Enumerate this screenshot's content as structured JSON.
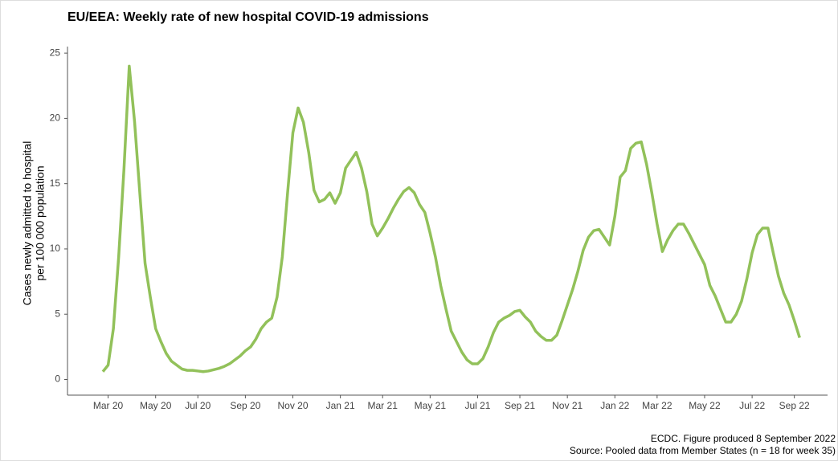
{
  "chart_data": {
    "type": "line",
    "title": "EU/EEA: Weekly rate of new hospital COVID-19 admissions",
    "ylabel": [
      "Cases newly admitted to hospital",
      "per 100 000 population"
    ],
    "notes": [
      "ECDC. Figure produced 8 September 2022",
      "Source: Pooled data from Member States (n = 18 for week 35)"
    ],
    "color": "#92c15a",
    "ylim": [
      -1.2,
      25.5
    ],
    "yticks": [
      0,
      5,
      10,
      15,
      20,
      25
    ],
    "grid": false,
    "categories": [
      null,
      "Mar 20",
      null,
      null,
      null,
      null,
      null,
      null,
      null,
      null,
      "May 20",
      null,
      null,
      null,
      null,
      null,
      null,
      null,
      "Jul 20",
      null,
      null,
      null,
      null,
      null,
      null,
      null,
      null,
      "Sep 20",
      null,
      null,
      null,
      null,
      null,
      null,
      null,
      null,
      "Nov 20",
      null,
      null,
      null,
      null,
      null,
      null,
      null,
      null,
      "Jan 21",
      null,
      null,
      null,
      null,
      null,
      null,
      null,
      "Mar 21",
      null,
      null,
      null,
      null,
      null,
      null,
      null,
      null,
      "May 21",
      null,
      null,
      null,
      null,
      null,
      null,
      null,
      null,
      "Jul 21",
      null,
      null,
      null,
      null,
      null,
      null,
      null,
      "Sep 21",
      null,
      null,
      null,
      null,
      null,
      null,
      null,
      null,
      "Nov 21",
      null,
      null,
      null,
      null,
      null,
      null,
      null,
      null,
      "Jan 22",
      null,
      null,
      null,
      null,
      null,
      null,
      null,
      "Mar 22",
      null,
      null,
      null,
      null,
      null,
      null,
      null,
      null,
      "May 22",
      null,
      null,
      null,
      null,
      null,
      null,
      null,
      null,
      "Jul 22",
      null,
      null,
      null,
      null,
      null,
      null,
      null,
      "Sep 22",
      null
    ],
    "values": [
      0.6,
      1.1,
      3.9,
      9.4,
      16.1,
      24.0,
      19.8,
      14.3,
      8.9,
      6.3,
      3.9,
      2.9,
      2.0,
      1.4,
      1.1,
      0.8,
      0.7,
      0.7,
      0.65,
      0.6,
      0.65,
      0.75,
      0.85,
      1.0,
      1.2,
      1.5,
      1.8,
      2.2,
      2.5,
      3.1,
      3.9,
      4.4,
      4.7,
      6.3,
      9.4,
      14.3,
      18.9,
      20.8,
      19.7,
      17.4,
      14.5,
      13.6,
      13.8,
      14.3,
      13.5,
      14.3,
      16.2,
      16.8,
      17.4,
      16.2,
      14.4,
      11.9,
      11.0,
      11.6,
      12.3,
      13.1,
      13.8,
      14.4,
      14.7,
      14.3,
      13.4,
      12.8,
      11.2,
      9.4,
      7.2,
      5.4,
      3.7,
      2.9,
      2.1,
      1.5,
      1.2,
      1.2,
      1.6,
      2.5,
      3.6,
      4.4,
      4.7,
      4.9,
      5.2,
      5.3,
      4.8,
      4.4,
      3.7,
      3.3,
      3.0,
      3.0,
      3.4,
      4.5,
      5.7,
      6.9,
      8.3,
      9.9,
      10.9,
      11.4,
      11.5,
      10.9,
      10.3,
      12.5,
      15.5,
      16.0,
      17.7,
      18.1,
      18.2,
      16.5,
      14.3,
      11.9,
      9.8,
      10.7,
      11.4,
      11.9,
      11.9,
      11.2,
      10.4,
      9.6,
      8.8,
      7.2,
      6.4,
      5.4,
      4.4,
      4.4,
      5.0,
      6.0,
      7.7,
      9.7,
      11.1,
      11.6,
      11.6,
      9.7,
      7.9,
      6.6,
      5.7,
      4.5,
      3.2
    ]
  }
}
